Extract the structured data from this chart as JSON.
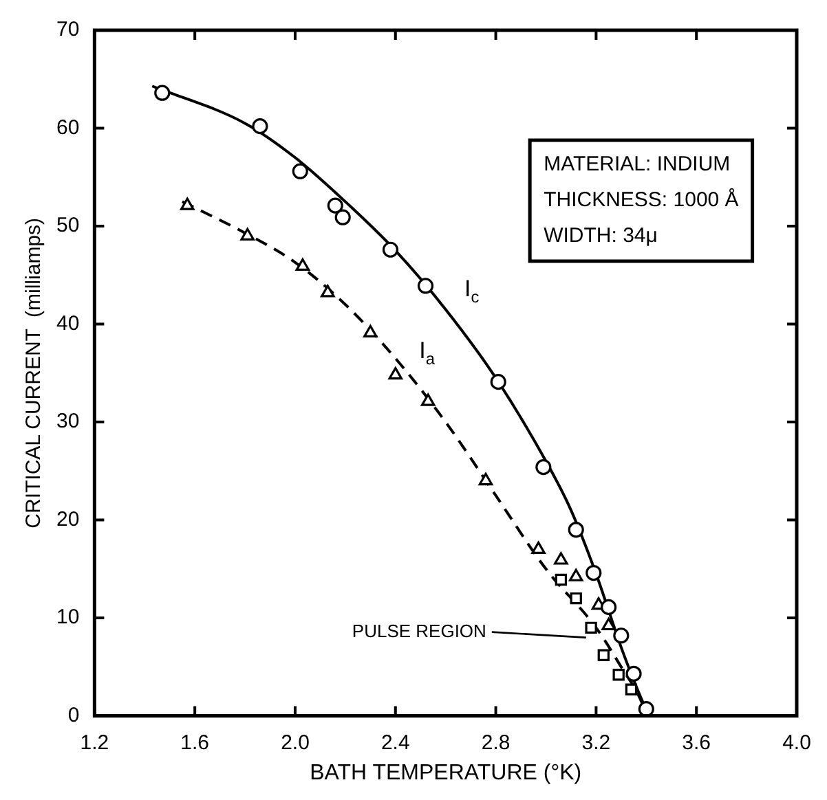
{
  "chart_data": {
    "type": "scatter",
    "xlabel": "BATH TEMPERATURE (°K)",
    "ylabel": "CRITICAL CURRENT  (milliamps)",
    "xlim": [
      1.2,
      4.0
    ],
    "xticks": [
      1.2,
      1.6,
      {
        "value": 2,
        "label": "2.0"
      },
      2.4,
      2.8,
      3.2,
      3.6,
      {
        "value": 4,
        "label": "4.0"
      }
    ],
    "ylim": [
      0,
      70
    ],
    "yticks": [
      0,
      10,
      20,
      30,
      40,
      50,
      60,
      70
    ],
    "grid": false,
    "legend": false,
    "series": [
      {
        "type": "line",
        "color": "#000000",
        "marker": "none",
        "line_style": "solid",
        "x": [
          1.43,
          1.8,
          2.0,
          2.2,
          2.4,
          2.6,
          2.8,
          3.0,
          3.1,
          3.2,
          3.3,
          3.36,
          3.41
        ],
        "values": [
          64.3,
          60.5,
          57,
          52.5,
          47.5,
          41.5,
          34.5,
          26,
          21,
          14.5,
          7,
          3,
          0
        ]
      },
      {
        "type": "line",
        "color": "#000000",
        "marker": "none",
        "line_style": "dashed",
        "x": [
          1.55,
          1.8,
          2.0,
          2.2,
          2.4,
          2.6,
          2.8,
          3.0,
          3.2,
          3.3,
          3.38,
          3.4
        ],
        "values": [
          52.5,
          49.3,
          46.3,
          42,
          36.5,
          30,
          22.5,
          15,
          9,
          5,
          1.5,
          0
        ]
      },
      {
        "type": "scatter",
        "color": "#000000",
        "marker": "circle",
        "x": [
          1.47,
          1.86,
          2.02,
          2.16,
          2.19,
          2.38,
          2.52,
          2.81,
          2.99,
          3.12,
          3.19,
          3.25,
          3.3,
          3.35,
          3.4
        ],
        "values": [
          63.6,
          60.2,
          55.6,
          52.1,
          50.9,
          47.6,
          43.9,
          34.1,
          25.4,
          19,
          14.6,
          11.1,
          8.2,
          4.3,
          0.7
        ]
      },
      {
        "type": "scatter",
        "color": "#000000",
        "marker": "triangle",
        "x": [
          1.57,
          1.81,
          2.03,
          2.13,
          2.3,
          2.4,
          2.53,
          2.76,
          2.97,
          3.06,
          3.12,
          3.21,
          3.25
        ],
        "values": [
          52.1,
          49,
          45.9,
          43.2,
          39.1,
          34.8,
          32.1,
          24,
          17,
          15.9,
          14.2,
          11.3,
          9.2
        ]
      },
      {
        "type": "scatter",
        "color": "#000000",
        "marker": "square",
        "x": [
          3.06,
          3.12,
          3.18,
          3.23,
          3.29,
          3.34
        ],
        "values": [
          13.9,
          12,
          9,
          6.2,
          4.2,
          2.7
        ]
      }
    ],
    "annotations": [
      "I$_{c}$",
      "I$_{a}$",
      {
        "text": "PULSE REGION",
        "x": 3.16,
        "y": 8
      },
      "MATERIAL: INDIUM",
      "THICKNESS: 1000 Å",
      "WIDTH: 34μ"
    ]
  }
}
